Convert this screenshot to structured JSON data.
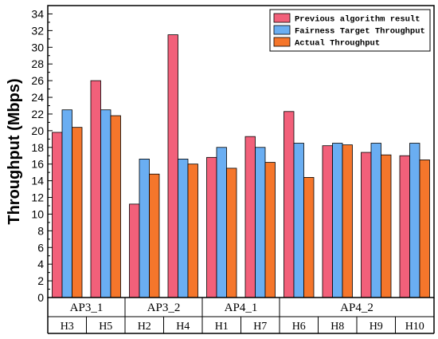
{
  "chart_data": {
    "type": "bar",
    "ylabel": "Throughput (Mbps)",
    "xlabel": "",
    "ylim": [
      0,
      35
    ],
    "ytick_step": 2,
    "grid": false,
    "legend_position": "top-right",
    "groups": [
      {
        "name": "AP3_1",
        "categories": [
          "H3",
          "H5"
        ]
      },
      {
        "name": "AP3_2",
        "categories": [
          "H2",
          "H4"
        ]
      },
      {
        "name": "AP4_1",
        "categories": [
          "H1",
          "H7"
        ]
      },
      {
        "name": "AP4_2",
        "categories": [
          "H6",
          "H8",
          "H9",
          "H10"
        ]
      }
    ],
    "categories": [
      "H3",
      "H5",
      "H2",
      "H4",
      "H1",
      "H7",
      "H6",
      "H8",
      "H9",
      "H10"
    ],
    "series": [
      {
        "name": "Previous algorithm result",
        "color": "#f2607a",
        "values": [
          19.8,
          26.0,
          11.2,
          31.5,
          16.8,
          19.3,
          22.3,
          18.2,
          17.4,
          17.0
        ]
      },
      {
        "name": "Fairness Target Throughput",
        "color": "#6aaef2",
        "values": [
          22.5,
          22.5,
          16.6,
          16.6,
          18.0,
          18.0,
          18.5,
          18.5,
          18.5,
          18.5
        ]
      },
      {
        "name": "Actual Throughput",
        "color": "#f5762b",
        "values": [
          20.4,
          21.8,
          14.8,
          16.0,
          15.5,
          16.2,
          14.4,
          18.3,
          17.1,
          16.5
        ]
      }
    ]
  }
}
